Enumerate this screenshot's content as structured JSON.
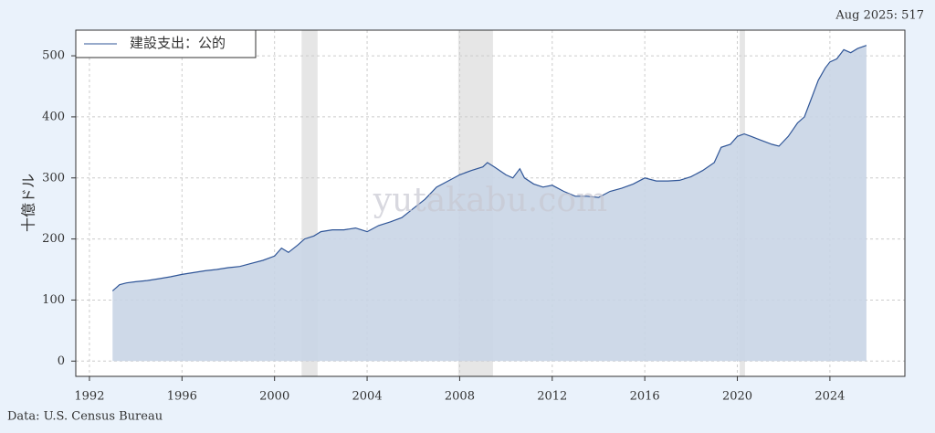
{
  "chart_data": {
    "type": "area",
    "ylabel": "十億ドル",
    "annotation": "Aug 2025: 517",
    "source": "Data: U.S. Census Bureau",
    "watermark": "yutakabu.com",
    "legend": "upper left",
    "grid": true,
    "fill_color": "#c9d5e6",
    "shade_color": "#e6e6e6",
    "xlim": [
      1991.41,
      2027.24
    ],
    "ylim": [
      -25,
      542
    ],
    "xticks": [
      1992,
      1996,
      2000,
      2004,
      2008,
      2012,
      2016,
      2020,
      2024
    ],
    "yticks": [
      0,
      100,
      200,
      300,
      400,
      500
    ],
    "recessions": [
      [
        2001.17,
        2001.86
      ],
      [
        2007.94,
        2009.44
      ],
      [
        2020.1,
        2020.33
      ]
    ],
    "x": [
      1993.0,
      1993.3,
      1993.6,
      1994.0,
      1994.5,
      1995.0,
      1995.5,
      1996.0,
      1996.5,
      1997.0,
      1997.5,
      1998.0,
      1998.5,
      1999.0,
      1999.5,
      2000.0,
      2000.3,
      2000.6,
      2001.0,
      2001.3,
      2001.7,
      2002.0,
      2002.5,
      2003.0,
      2003.5,
      2004.0,
      2004.5,
      2005.0,
      2005.5,
      2006.0,
      2006.5,
      2007.0,
      2007.5,
      2008.0,
      2008.5,
      2009.0,
      2009.2,
      2009.5,
      2010.0,
      2010.3,
      2010.6,
      2010.8,
      2011.2,
      2011.6,
      2012.0,
      2012.5,
      2013.0,
      2013.5,
      2014.0,
      2014.5,
      2015.0,
      2015.5,
      2016.0,
      2016.5,
      2017.0,
      2017.5,
      2018.0,
      2018.5,
      2019.0,
      2019.3,
      2019.7,
      2020.0,
      2020.3,
      2020.6,
      2021.0,
      2021.5,
      2021.8,
      2022.2,
      2022.6,
      2022.9,
      2023.2,
      2023.5,
      2023.8,
      2024.0,
      2024.3,
      2024.6,
      2024.9,
      2025.2,
      2025.58
    ],
    "series": [
      {
        "name": "建設支出：公的",
        "color": "#2f5597",
        "values": [
          115,
          125,
          128,
          130,
          132,
          135,
          138,
          142,
          145,
          148,
          150,
          153,
          155,
          160,
          165,
          172,
          185,
          178,
          190,
          200,
          205,
          212,
          215,
          215,
          218,
          212,
          222,
          228,
          235,
          250,
          265,
          285,
          295,
          305,
          312,
          318,
          325,
          318,
          305,
          300,
          315,
          300,
          290,
          285,
          288,
          278,
          270,
          270,
          268,
          278,
          283,
          290,
          300,
          295,
          295,
          296,
          302,
          312,
          325,
          350,
          355,
          368,
          372,
          368,
          362,
          355,
          352,
          368,
          390,
          400,
          430,
          460,
          480,
          490,
          495,
          510,
          505,
          512,
          517
        ]
      }
    ]
  }
}
